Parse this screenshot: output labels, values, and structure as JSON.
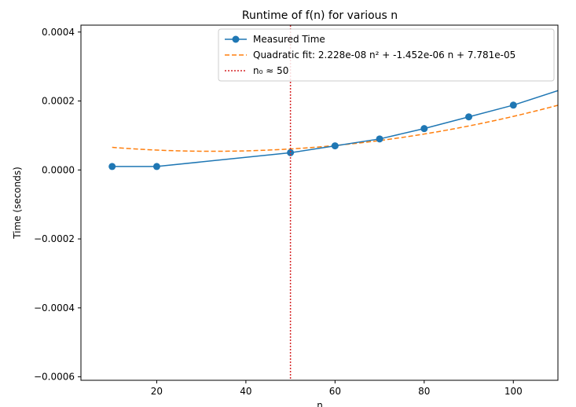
{
  "chart_data": {
    "type": "line",
    "title": "Runtime of f(n) for various n",
    "xlabel": "n",
    "ylabel": "Time (seconds)",
    "xlim": [
      3,
      110
    ],
    "ylim": [
      -0.00061,
      0.00042
    ],
    "xticks": [
      20,
      40,
      60,
      80,
      100
    ],
    "xtick_labels": [
      "20",
      "40",
      "60",
      "80",
      "100"
    ],
    "yticks": [
      -0.0006,
      -0.0004,
      -0.0002,
      0.0,
      0.0002,
      0.0004
    ],
    "ytick_labels": [
      "−0.0006",
      "−0.0004",
      "−0.0002",
      "0.0000",
      "0.0002",
      "0.0004"
    ],
    "grid": false,
    "legend_position": "top-right",
    "series": [
      {
        "name": "Measured Time",
        "style": "line-markers",
        "color": "#1f77b4",
        "x": [
          10,
          20,
          50,
          60,
          70,
          80,
          90,
          100,
          110
        ],
        "y": [
          1e-05,
          1e-05,
          5e-05,
          7e-05,
          9e-05,
          0.00012,
          0.000154,
          0.000188,
          0.00023
        ],
        "markers": [
          true,
          true,
          true,
          true,
          true,
          true,
          true,
          true,
          false
        ]
      },
      {
        "name": "Quadratic fit: 2.228e-08 n² + -1.452e-06 n + 7.781e-05",
        "style": "dashed",
        "color": "#ff7f0e",
        "fit": {
          "a": 2.228e-08,
          "b": -1.452e-06,
          "c": 7.781e-05
        },
        "x_range": [
          10,
          110
        ]
      },
      {
        "name": "n₀ ≈ 50",
        "style": "dotted-vline",
        "color": "#d62728",
        "x": 50
      }
    ]
  }
}
